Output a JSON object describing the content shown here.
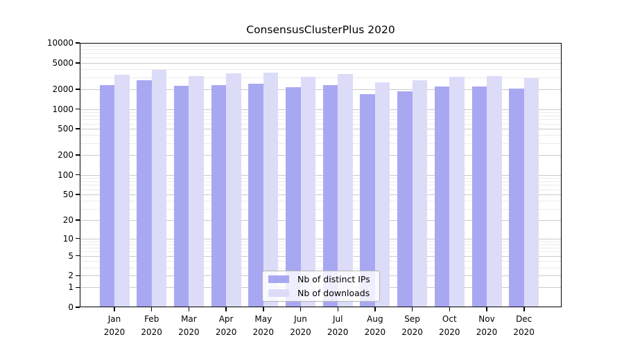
{
  "title": "ConsensusClusterPlus 2020",
  "colors": {
    "distinct_ips": "#a8a8f2",
    "downloads": "#dcdcf9",
    "grid_major": "#c9c9c9",
    "grid_minor": "#ebebeb",
    "frame": "#000000",
    "background": "#ffffff"
  },
  "legend": {
    "items": [
      {
        "label": "Nb of distinct IPs",
        "color": "#a8a8f2"
      },
      {
        "label": "Nb of downloads",
        "color": "#dcdcf9"
      }
    ]
  },
  "y_axis": {
    "ticks": [
      10000,
      5000,
      2000,
      1000,
      500,
      200,
      100,
      50,
      20,
      10,
      5,
      2,
      1,
      0
    ],
    "scale": "log10(value+1)",
    "range": [
      0,
      10000
    ]
  },
  "x_axis": {
    "tick_labels": [
      "Jan 2020",
      "Feb 2020",
      "Mar 2020",
      "Apr 2020",
      "May 2020",
      "Jun 2020",
      "Jul 2020",
      "Aug 2020",
      "Sep 2020",
      "Oct 2020",
      "Nov 2020",
      "Dec 2020"
    ]
  },
  "chart_data": {
    "type": "bar",
    "title": "ConsensusClusterPlus 2020",
    "categories": [
      "Jan 2020",
      "Feb 2020",
      "Mar 2020",
      "Apr 2020",
      "May 2020",
      "Jun 2020",
      "Jul 2020",
      "Aug 2020",
      "Sep 2020",
      "Oct 2020",
      "Nov 2020",
      "Dec 2020"
    ],
    "series": [
      {
        "name": "Nb of distinct IPs",
        "color": "#a8a8f2",
        "values": [
          2280,
          2700,
          2240,
          2280,
          2430,
          2140,
          2280,
          1680,
          1830,
          2190,
          2190,
          2020
        ]
      },
      {
        "name": "Nb of downloads",
        "color": "#dcdcf9",
        "values": [
          3320,
          3900,
          3140,
          3460,
          3550,
          3090,
          3400,
          2510,
          2720,
          3090,
          3140,
          2900
        ]
      }
    ],
    "xlabel": "",
    "ylabel": "",
    "ylim": [
      0,
      10000
    ],
    "yscale": "pseudo-log (log10 of value+1), decades 1-10000 plus 0 baseline",
    "grid": true,
    "legend_position": "inside-bottom-center"
  }
}
